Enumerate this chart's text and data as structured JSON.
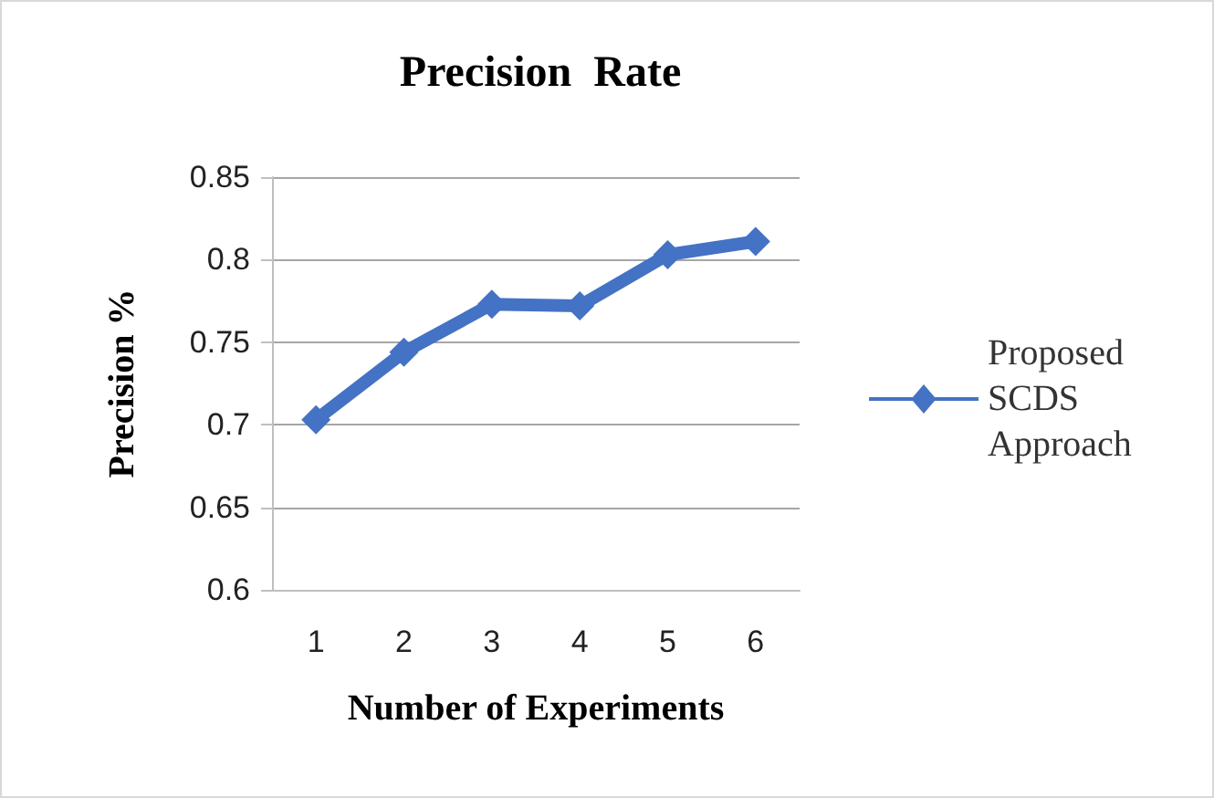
{
  "chart_data": {
    "type": "line",
    "title": "Precision  Rate",
    "xlabel": "Number of Experiments",
    "ylabel": "Precision %",
    "categories": [
      "1",
      "2",
      "3",
      "4",
      "5",
      "6"
    ],
    "series": [
      {
        "name": "Proposed SCDS Approach",
        "color": "#4472c4",
        "values": [
          0.703,
          0.744,
          0.773,
          0.772,
          0.803,
          0.811
        ]
      }
    ],
    "ylim": [
      0.6,
      0.85
    ],
    "yticks": [
      0.6,
      0.65,
      0.7,
      0.75,
      0.8,
      0.85
    ],
    "grid": "y",
    "legend": "right",
    "marker": "diamond",
    "line_style": "solid"
  }
}
